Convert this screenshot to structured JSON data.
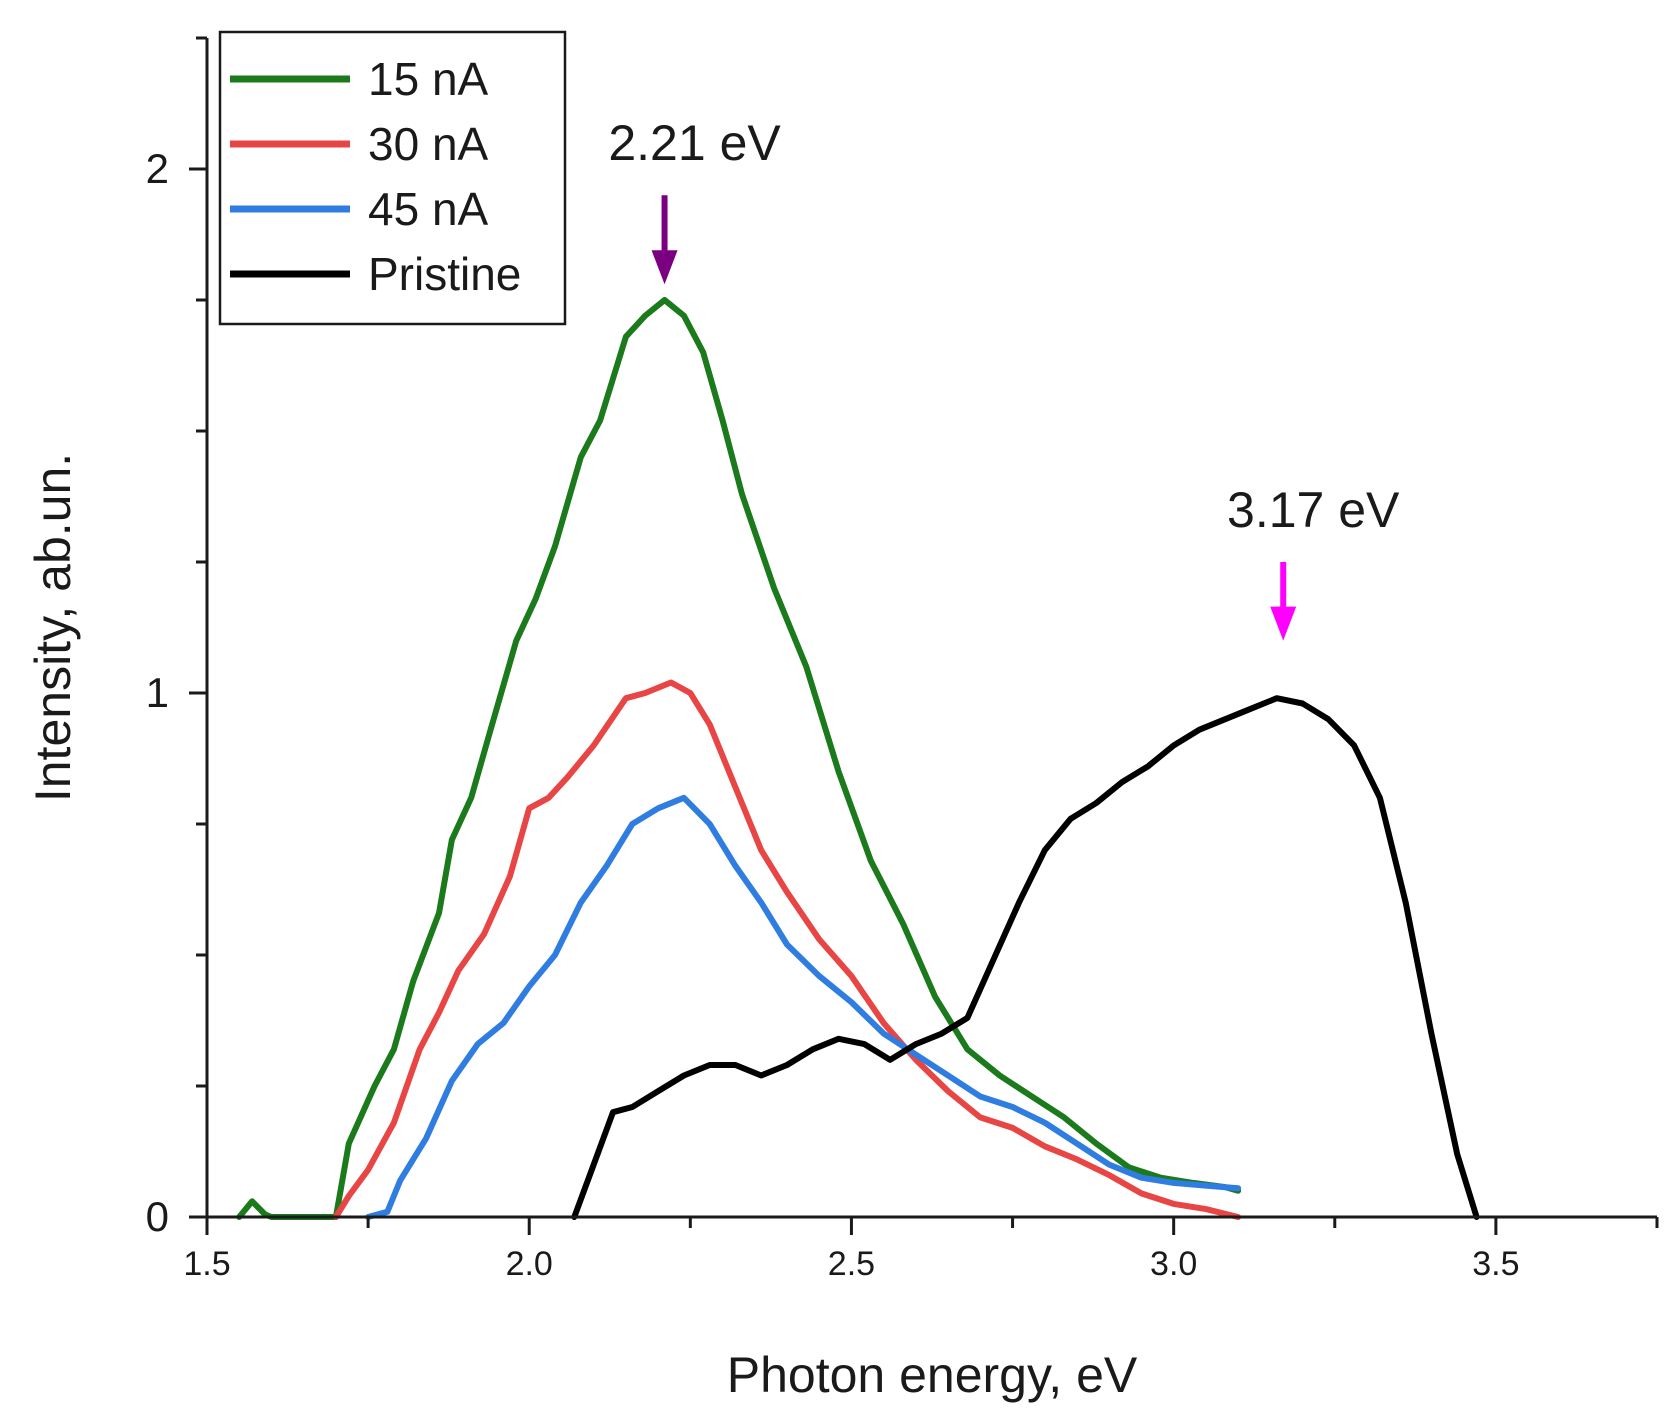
{
  "chart_data": {
    "type": "line",
    "title": "",
    "xlabel": "Photon energy, eV",
    "ylabel": "Intensity, ab.un.",
    "xlim": [
      1.5,
      3.75
    ],
    "ylim": [
      0,
      2.25
    ],
    "x_ticks": [
      1.5,
      2.0,
      2.5,
      3.0,
      3.5
    ],
    "x_tick_labels": [
      "1.5",
      "2.0",
      "2.5",
      "3.0",
      "3.5"
    ],
    "x_minor_step": 0.25,
    "y_ticks": [
      0,
      1,
      2
    ],
    "y_tick_labels": [
      "0",
      "1",
      "2"
    ],
    "y_minor_step": 0.25,
    "legend_position": "top-left",
    "series": [
      {
        "name": "15 nA",
        "color": "#1b7a1b",
        "points": [
          [
            1.55,
            0
          ],
          [
            1.57,
            0.03
          ],
          [
            1.59,
            0.005
          ],
          [
            1.6,
            0
          ],
          [
            1.7,
            0
          ],
          [
            1.72,
            0.14
          ],
          [
            1.76,
            0.25
          ],
          [
            1.79,
            0.32
          ],
          [
            1.82,
            0.45
          ],
          [
            1.86,
            0.58
          ],
          [
            1.88,
            0.72
          ],
          [
            1.91,
            0.8
          ],
          [
            1.94,
            0.93
          ],
          [
            1.98,
            1.1
          ],
          [
            2.01,
            1.18
          ],
          [
            2.04,
            1.28
          ],
          [
            2.08,
            1.45
          ],
          [
            2.11,
            1.52
          ],
          [
            2.15,
            1.68
          ],
          [
            2.18,
            1.72
          ],
          [
            2.21,
            1.75
          ],
          [
            2.24,
            1.72
          ],
          [
            2.27,
            1.65
          ],
          [
            2.3,
            1.52
          ],
          [
            2.33,
            1.38
          ],
          [
            2.38,
            1.2
          ],
          [
            2.43,
            1.05
          ],
          [
            2.48,
            0.85
          ],
          [
            2.53,
            0.68
          ],
          [
            2.58,
            0.56
          ],
          [
            2.63,
            0.42
          ],
          [
            2.68,
            0.32
          ],
          [
            2.73,
            0.27
          ],
          [
            2.78,
            0.23
          ],
          [
            2.83,
            0.19
          ],
          [
            2.88,
            0.14
          ],
          [
            2.93,
            0.095
          ],
          [
            2.98,
            0.075
          ],
          [
            3.03,
            0.065
          ],
          [
            3.08,
            0.057
          ],
          [
            3.1,
            0.05
          ]
        ]
      },
      {
        "name": "30 nA",
        "color": "#e84545",
        "points": [
          [
            1.7,
            0
          ],
          [
            1.72,
            0.04
          ],
          [
            1.75,
            0.09
          ],
          [
            1.79,
            0.18
          ],
          [
            1.83,
            0.32
          ],
          [
            1.86,
            0.39
          ],
          [
            1.89,
            0.47
          ],
          [
            1.93,
            0.54
          ],
          [
            1.97,
            0.65
          ],
          [
            2.0,
            0.78
          ],
          [
            2.03,
            0.8
          ],
          [
            2.06,
            0.84
          ],
          [
            2.1,
            0.9
          ],
          [
            2.15,
            0.99
          ],
          [
            2.18,
            1.0
          ],
          [
            2.22,
            1.02
          ],
          [
            2.25,
            1.0
          ],
          [
            2.28,
            0.94
          ],
          [
            2.32,
            0.82
          ],
          [
            2.36,
            0.7
          ],
          [
            2.4,
            0.62
          ],
          [
            2.45,
            0.53
          ],
          [
            2.5,
            0.46
          ],
          [
            2.55,
            0.37
          ],
          [
            2.6,
            0.3
          ],
          [
            2.65,
            0.24
          ],
          [
            2.7,
            0.19
          ],
          [
            2.75,
            0.17
          ],
          [
            2.8,
            0.135
          ],
          [
            2.85,
            0.11
          ],
          [
            2.9,
            0.08
          ],
          [
            2.95,
            0.045
          ],
          [
            3.0,
            0.025
          ],
          [
            3.05,
            0.015
          ],
          [
            3.1,
            0
          ]
        ]
      },
      {
        "name": "45 nA",
        "color": "#2f7de0",
        "points": [
          [
            1.75,
            0
          ],
          [
            1.78,
            0.01
          ],
          [
            1.8,
            0.07
          ],
          [
            1.84,
            0.15
          ],
          [
            1.88,
            0.26
          ],
          [
            1.92,
            0.33
          ],
          [
            1.96,
            0.37
          ],
          [
            2.0,
            0.44
          ],
          [
            2.04,
            0.5
          ],
          [
            2.08,
            0.6
          ],
          [
            2.12,
            0.67
          ],
          [
            2.16,
            0.75
          ],
          [
            2.2,
            0.78
          ],
          [
            2.24,
            0.8
          ],
          [
            2.28,
            0.75
          ],
          [
            2.32,
            0.67
          ],
          [
            2.36,
            0.6
          ],
          [
            2.4,
            0.52
          ],
          [
            2.45,
            0.46
          ],
          [
            2.5,
            0.41
          ],
          [
            2.55,
            0.35
          ],
          [
            2.6,
            0.31
          ],
          [
            2.65,
            0.27
          ],
          [
            2.7,
            0.23
          ],
          [
            2.75,
            0.21
          ],
          [
            2.8,
            0.18
          ],
          [
            2.85,
            0.14
          ],
          [
            2.9,
            0.1
          ],
          [
            2.95,
            0.075
          ],
          [
            3.0,
            0.065
          ],
          [
            3.05,
            0.06
          ],
          [
            3.1,
            0.055
          ]
        ]
      },
      {
        "name": "Pristine",
        "color": "#000000",
        "points": [
          [
            2.07,
            0
          ],
          [
            2.1,
            0.1
          ],
          [
            2.13,
            0.2
          ],
          [
            2.16,
            0.21
          ],
          [
            2.2,
            0.24
          ],
          [
            2.24,
            0.27
          ],
          [
            2.28,
            0.29
          ],
          [
            2.32,
            0.29
          ],
          [
            2.36,
            0.27
          ],
          [
            2.4,
            0.29
          ],
          [
            2.44,
            0.32
          ],
          [
            2.48,
            0.34
          ],
          [
            2.52,
            0.33
          ],
          [
            2.56,
            0.3
          ],
          [
            2.6,
            0.33
          ],
          [
            2.64,
            0.35
          ],
          [
            2.68,
            0.38
          ],
          [
            2.72,
            0.49
          ],
          [
            2.76,
            0.6
          ],
          [
            2.8,
            0.7
          ],
          [
            2.84,
            0.76
          ],
          [
            2.88,
            0.79
          ],
          [
            2.92,
            0.83
          ],
          [
            2.96,
            0.86
          ],
          [
            3.0,
            0.9
          ],
          [
            3.04,
            0.93
          ],
          [
            3.08,
            0.95
          ],
          [
            3.12,
            0.97
          ],
          [
            3.16,
            0.99
          ],
          [
            3.2,
            0.98
          ],
          [
            3.24,
            0.95
          ],
          [
            3.28,
            0.9
          ],
          [
            3.32,
            0.8
          ],
          [
            3.36,
            0.6
          ],
          [
            3.4,
            0.35
          ],
          [
            3.44,
            0.12
          ],
          [
            3.47,
            0
          ]
        ]
      }
    ],
    "annotations": [
      {
        "text": "2.21 eV",
        "x": 2.21,
        "arrow_tip_y": 1.78,
        "arrow_tail_y": 1.95,
        "color": "#7a0080"
      },
      {
        "text": "3.17 eV",
        "x": 3.17,
        "arrow_tip_y": 1.1,
        "arrow_tail_y": 1.25,
        "color": "#ff00ff"
      }
    ]
  }
}
